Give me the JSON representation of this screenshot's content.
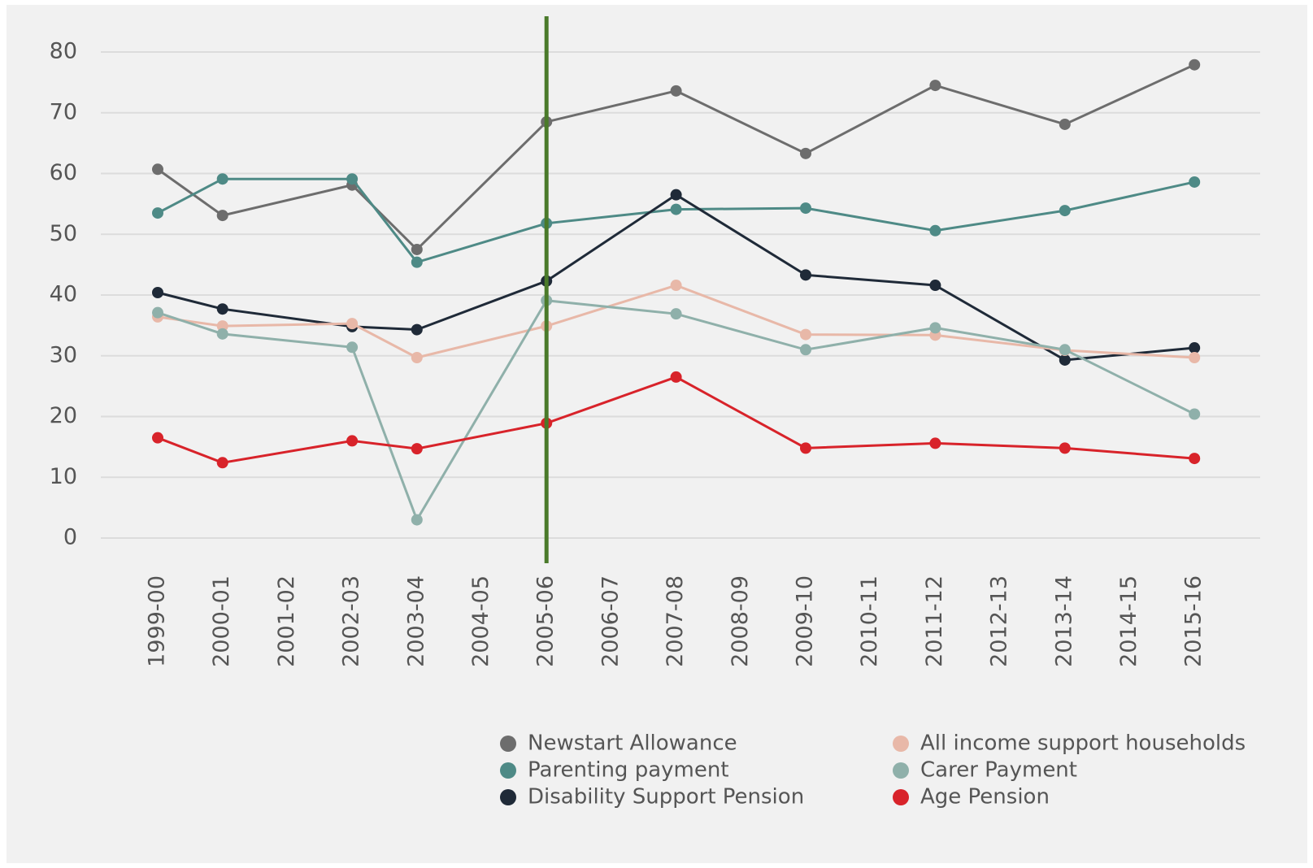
{
  "chart_data": {
    "type": "line",
    "xticks": [
      "1999-00",
      "2000-01",
      "2001-02",
      "2002-03",
      "2003-04",
      "2004-05",
      "2005-06",
      "2006-07",
      "2007-08",
      "2008-09",
      "2009-10",
      "2010-11",
      "2011-12",
      "2012-13",
      "2013-14",
      "2014-15",
      "2015-16"
    ],
    "x": [
      "1999-00",
      "2000-01",
      "2002-03",
      "2003-04",
      "2005-06",
      "2007-08",
      "2009-10",
      "2011-12",
      "2013-14",
      "2015-16"
    ],
    "series": [
      {
        "name": "Newstart Allowance",
        "color": "#6d6d6d",
        "values": [
          60.7,
          53.1,
          58.1,
          47.5,
          68.5,
          73.6,
          63.3,
          74.5,
          68.1,
          77.9
        ]
      },
      {
        "name": "Parenting payment",
        "color": "#4e8a86",
        "values": [
          53.5,
          59.1,
          59.1,
          45.4,
          51.8,
          54.1,
          54.3,
          50.6,
          53.9,
          58.6
        ]
      },
      {
        "name": "Disability Support Pension",
        "color": "#1f2a38",
        "values": [
          40.4,
          37.7,
          34.8,
          34.3,
          42.3,
          56.5,
          43.3,
          41.6,
          29.3,
          31.3
        ]
      },
      {
        "name": "All income support households",
        "color": "#e8b8a8",
        "values": [
          36.4,
          34.9,
          35.3,
          29.7,
          34.9,
          41.6,
          33.5,
          33.4,
          30.9,
          29.7
        ]
      },
      {
        "name": "Carer Payment",
        "color": "#8fb0aa",
        "values": [
          37.1,
          33.6,
          31.4,
          3.0,
          39.1,
          36.9,
          31.0,
          34.6,
          31.0,
          20.4
        ]
      },
      {
        "name": "Age Pension",
        "color": "#d8232a",
        "values": [
          16.5,
          12.4,
          16.0,
          14.7,
          18.9,
          26.5,
          14.8,
          15.6,
          14.8,
          13.1
        ]
      }
    ],
    "ylim": [
      0,
      80
    ],
    "yticks": [
      0,
      10,
      20,
      30,
      40,
      50,
      60,
      70,
      80
    ],
    "grid": true,
    "vline": {
      "x": "2005-06",
      "color": "#4a7a2a"
    }
  }
}
